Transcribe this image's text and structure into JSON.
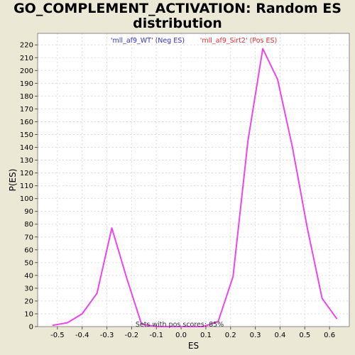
{
  "chart_data": {
    "type": "line",
    "title_line1": "GO_COMPLEMENT_ACTIVATION: Random ES",
    "title_line2": "distribution",
    "xlabel": "ES",
    "ylabel": "P(ES)",
    "xlim": [
      -0.58,
      0.68
    ],
    "ylim": [
      0,
      229
    ],
    "x_ticks": [
      -0.5,
      -0.4,
      -0.3,
      -0.2,
      -0.1,
      0.0,
      0.1,
      0.2,
      0.3,
      0.4,
      0.5,
      0.6
    ],
    "x_tick_labels": [
      "-0.5",
      "-0.4",
      "-0.3",
      "-0.2",
      "-0.1",
      "0.0",
      "0.1",
      "0.2",
      "0.3",
      "0.4",
      "0.5",
      "0.6"
    ],
    "y_ticks": [
      0,
      10,
      20,
      30,
      40,
      50,
      60,
      70,
      80,
      90,
      100,
      110,
      120,
      130,
      140,
      150,
      160,
      170,
      180,
      190,
      200,
      210,
      220
    ],
    "grid": true,
    "legend": [
      {
        "label": "'mll_af9_WT' (Neg ES)",
        "color": "#3333cc"
      },
      {
        "label": "'mll_af9_Sirt2' (Pos ES)",
        "color": "#e03030"
      }
    ],
    "annotation": "Sets with pos scores: 85%",
    "series": [
      {
        "color": "#ee44ee",
        "points": [
          [
            -0.52,
            1
          ],
          [
            -0.46,
            3
          ],
          [
            -0.4,
            10
          ],
          [
            -0.34,
            26
          ],
          [
            -0.28,
            77
          ],
          [
            -0.22,
            38
          ],
          [
            -0.16,
            2
          ],
          [
            -0.1,
            0
          ],
          [
            -0.04,
            0
          ],
          [
            0.03,
            0
          ],
          [
            0.09,
            0
          ],
          [
            0.15,
            4
          ],
          [
            0.21,
            39
          ],
          [
            0.27,
            145
          ],
          [
            0.33,
            217
          ],
          [
            0.39,
            193
          ],
          [
            0.45,
            140
          ],
          [
            0.51,
            77
          ],
          [
            0.57,
            22
          ],
          [
            0.63,
            6
          ]
        ]
      }
    ]
  }
}
